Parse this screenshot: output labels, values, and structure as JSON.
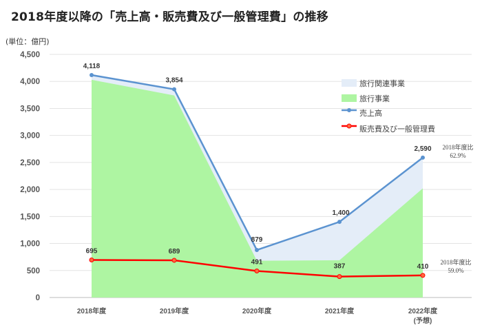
{
  "title": "2018年度以降の「売上高・販売費及び一般管理費」の推移",
  "unit_label": "(単位：億円)",
  "colors": {
    "travel_related": "#e4edf8",
    "travel": "#aef5a2",
    "sales_line": "#5b93d0",
    "sga_line": "#ff0000"
  },
  "chart_data": {
    "type": "area",
    "categories": [
      "2018年度",
      "2019年度",
      "2020年度",
      "2021年度",
      "2022年度"
    ],
    "category_sublabels": [
      "",
      "",
      "",
      "",
      "(予想)"
    ],
    "ylim": [
      0,
      4500
    ],
    "yticks": [
      0,
      500,
      1000,
      1500,
      2000,
      2500,
      3000,
      3500,
      4000,
      4500
    ],
    "ytick_labels": [
      "0",
      "500",
      "1,000",
      "1,500",
      "2,000",
      "2,500",
      "3,000",
      "3,500",
      "4,000",
      "4,500"
    ],
    "grid": true,
    "legend_position": "top-right",
    "series": [
      {
        "name": "旅行関連事業",
        "kind": "area",
        "values": [
          4118,
          3854,
          879,
          1400,
          2590
        ]
      },
      {
        "name": "旅行事業",
        "kind": "area",
        "values": [
          4030,
          3740,
          680,
          690,
          2020
        ]
      },
      {
        "name": "売上高",
        "kind": "line",
        "values": [
          4118,
          3854,
          879,
          1400,
          2590
        ],
        "data_labels": [
          "4,118",
          "3,854",
          "879",
          "1,400",
          "2,590"
        ]
      },
      {
        "name": "販売費及び一般管理費",
        "kind": "line",
        "values": [
          695,
          689,
          491,
          387,
          410
        ],
        "data_labels": [
          "695",
          "689",
          "491",
          "387",
          "410"
        ]
      }
    ],
    "annotations": [
      {
        "lines": [
          "2018年度比",
          "62.9%"
        ]
      },
      {
        "lines": [
          "2018年度比",
          "59.0%"
        ]
      }
    ]
  }
}
